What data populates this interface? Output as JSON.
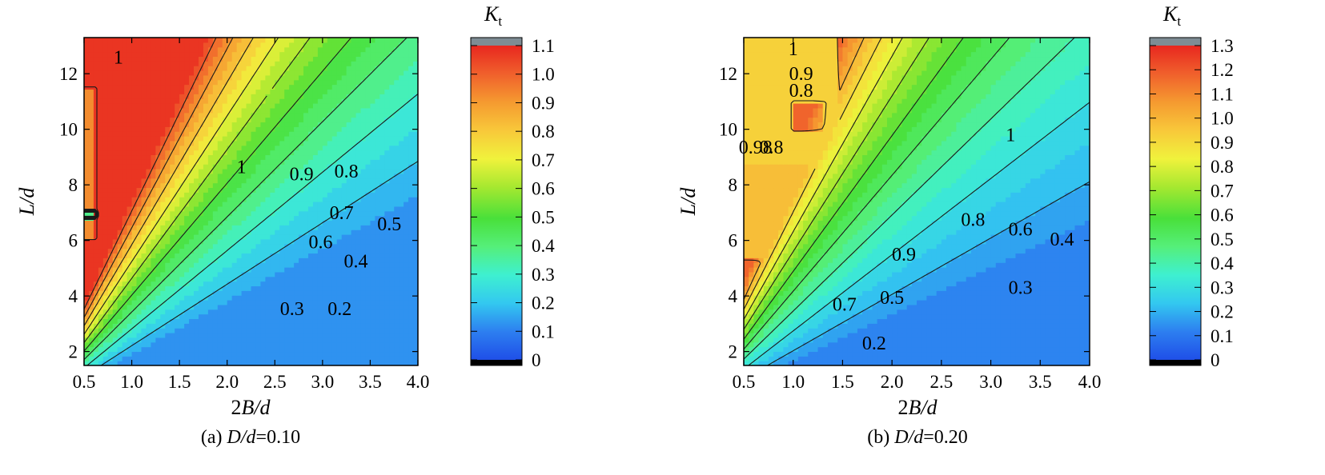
{
  "chart_data": [
    {
      "type": "heatmap",
      "panel_caption_prefix": "(a) ",
      "panel_caption_var": "D/d",
      "panel_caption_value": "=0.10",
      "xlabel_prefix": "2",
      "xlabel_var": "B/d",
      "ylabel": "L/d",
      "xlim": [
        0.5,
        4.0
      ],
      "ylim": [
        1.5,
        13.3
      ],
      "x_ticks": [
        "0.5",
        "1.0",
        "1.5",
        "2.0",
        "2.5",
        "3.0",
        "3.5",
        "4.0"
      ],
      "y_ticks": [
        "2",
        "4",
        "6",
        "8",
        "10",
        "12"
      ],
      "colorbar_title": "K",
      "colorbar_title_sub": "t",
      "colorbar_range": [
        0,
        1.1
      ],
      "colorbar_ticks": [
        "0",
        "0.1",
        "0.2",
        "0.3",
        "0.4",
        "0.5",
        "0.6",
        "0.7",
        "0.8",
        "0.9",
        "1.0",
        "1.1"
      ],
      "contour_levels": [
        0.2,
        0.3,
        0.4,
        0.5,
        0.6,
        0.7,
        0.8,
        0.9,
        1.0
      ],
      "contour_labels": [
        {
          "text": "1",
          "x": 0.86,
          "y": 12.6
        },
        {
          "text": "1",
          "x": 2.15,
          "y": 8.65
        },
        {
          "text": "0.9",
          "x": 2.78,
          "y": 8.4
        },
        {
          "text": "0.8",
          "x": 3.25,
          "y": 8.5
        },
        {
          "text": "0.7",
          "x": 3.2,
          "y": 7.0
        },
        {
          "text": "0.5",
          "x": 3.7,
          "y": 6.6
        },
        {
          "text": "0.6",
          "x": 2.98,
          "y": 5.95
        },
        {
          "text": "0.4",
          "x": 3.35,
          "y": 5.25
        },
        {
          "text": "0.3",
          "x": 2.68,
          "y": 3.55
        },
        {
          "text": "0.2",
          "x": 3.18,
          "y": 3.55
        }
      ]
    },
    {
      "type": "heatmap",
      "panel_caption_prefix": "(b) ",
      "panel_caption_var": "D/d",
      "panel_caption_value": "=0.20",
      "xlabel_prefix": "2",
      "xlabel_var": "B/d",
      "ylabel": "L/d",
      "xlim": [
        0.5,
        4.0
      ],
      "ylim": [
        1.5,
        13.3
      ],
      "x_ticks": [
        "0.5",
        "1.0",
        "1.5",
        "2.0",
        "2.5",
        "3.0",
        "3.5",
        "4.0"
      ],
      "y_ticks": [
        "2",
        "4",
        "6",
        "8",
        "10",
        "12"
      ],
      "colorbar_title": "K",
      "colorbar_title_sub": "t",
      "colorbar_range": [
        0,
        1.3
      ],
      "colorbar_ticks": [
        "0",
        "0.1",
        "0.2",
        "0.3",
        "0.4",
        "0.5",
        "0.6",
        "0.7",
        "0.8",
        "0.9",
        "1.0",
        "1.1",
        "1.2",
        "1.3"
      ],
      "contour_levels": [
        0.2,
        0.3,
        0.4,
        0.5,
        0.6,
        0.7,
        0.8,
        0.9,
        1.0
      ],
      "contour_labels": [
        {
          "text": "1",
          "x": 1.0,
          "y": 12.9
        },
        {
          "text": "0.9",
          "x": 1.08,
          "y": 12.0
        },
        {
          "text": "0.8",
          "x": 1.08,
          "y": 11.4
        },
        {
          "text": "0.98",
          "x": 0.62,
          "y": 9.35
        },
        {
          "text": "0.8",
          "x": 0.78,
          "y": 9.35
        },
        {
          "text": "1",
          "x": 3.2,
          "y": 9.8
        },
        {
          "text": "0.8",
          "x": 2.82,
          "y": 6.75
        },
        {
          "text": "0.6",
          "x": 3.3,
          "y": 6.4
        },
        {
          "text": "0.4",
          "x": 3.72,
          "y": 6.05
        },
        {
          "text": "0.9",
          "x": 2.12,
          "y": 5.5
        },
        {
          "text": "0.3",
          "x": 3.3,
          "y": 4.3
        },
        {
          "text": "0.5",
          "x": 2.0,
          "y": 3.95
        },
        {
          "text": "0.7",
          "x": 1.52,
          "y": 3.7
        },
        {
          "text": "0.2",
          "x": 1.82,
          "y": 2.3
        }
      ]
    }
  ]
}
